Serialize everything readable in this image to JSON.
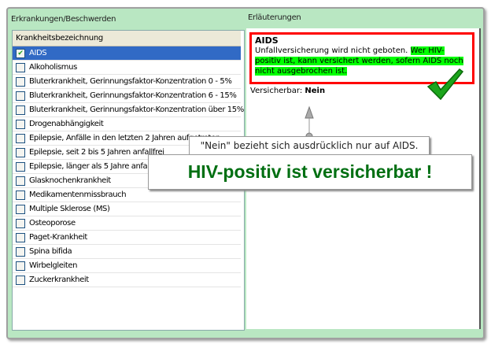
{
  "left_panel": {
    "title": "Erkrankungen/Beschwerden",
    "column_header": "Krankheitsbezeichnung",
    "items": [
      {
        "label": "AIDS",
        "checked": true,
        "selected": true
      },
      {
        "label": "Alkoholismus",
        "checked": false
      },
      {
        "label": "Bluterkrankheit, Gerinnungsfaktor-Konzentration 0 - 5%",
        "checked": false
      },
      {
        "label": "Bluterkrankheit, Gerinnungsfaktor-Konzentration 6 - 15%",
        "checked": false
      },
      {
        "label": "Bluterkrankheit, Gerinnungsfaktor-Konzentration über 15%",
        "checked": false
      },
      {
        "label": "Drogenabhängigkeit",
        "checked": false
      },
      {
        "label": "Epilepsie, Anfälle in den letzten 2 Jahren aufgetreten",
        "checked": false
      },
      {
        "label": "Epilepsie, seit 2 bis 5 Jahren anfallfrei",
        "checked": false
      },
      {
        "label": "Epilepsie, länger als 5 Jahre anfallfrei",
        "checked": false
      },
      {
        "label": "Glasknochenkrankheit",
        "checked": false
      },
      {
        "label": "Medikamentenmissbrauch",
        "checked": false
      },
      {
        "label": "Multiple Sklerose (MS)",
        "checked": false
      },
      {
        "label": "Osteoporose",
        "checked": false
      },
      {
        "label": "Paget-Krankheit",
        "checked": false
      },
      {
        "label": "Spina bifida",
        "checked": false
      },
      {
        "label": "Wirbelgleiten",
        "checked": false
      },
      {
        "label": "Zuckerkrankheit",
        "checked": false
      }
    ]
  },
  "right_panel": {
    "title": "Erläuterungen",
    "heading": "AIDS",
    "text_plain": "Unfallversicherung wird nicht geboten. ",
    "text_highlight": "Wer HIV-positiv ist, kann versichert werden, sofern AIDS noch nicht ausgebrochen ist.",
    "insurable_label": "Versicherbar: ",
    "insurable_value": "Nein"
  },
  "annotations": {
    "note": "\"Nein\" bezieht sich ausdrücklich nur auf AIDS.",
    "headline": "HIV-positiv ist versicherbar !",
    "headline_color": "#006f12",
    "highlight_color": "#00ff00",
    "box_color": "#ff0000"
  }
}
